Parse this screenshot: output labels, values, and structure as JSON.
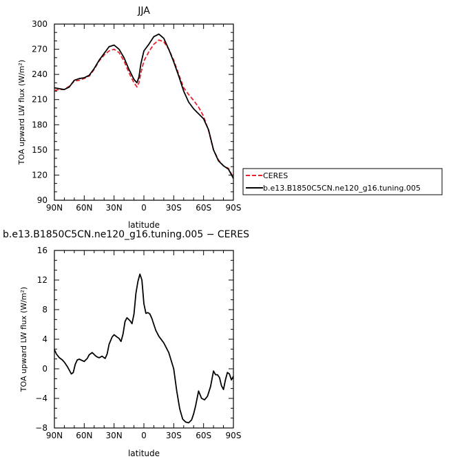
{
  "charts": {
    "top": {
      "title": "JJA",
      "xlabel": "latitude",
      "ylabel": "TOA upward LW flux (W/m²)"
    },
    "bottom": {
      "title": "b.e13.B1850C5CN.ne120_g16.tuning.005 − CERES",
      "xlabel": "latitude",
      "ylabel": "TOA upward LW flux (W/m²)"
    }
  },
  "legend": {
    "items": [
      {
        "label": "CERES",
        "color": "#e8202a",
        "dash": true
      },
      {
        "label": "b.e13.B1850C5CN.ne120_g16.tuning.005",
        "color": "#000000",
        "dash": false
      }
    ]
  },
  "chart_data": [
    {
      "type": "line",
      "title": "JJA",
      "xlabel": "latitude",
      "ylabel": "TOA upward LW flux (W/m²)",
      "xlim": [
        90,
        -90
      ],
      "ylim": [
        90,
        300
      ],
      "x_ticks": [
        90,
        60,
        30,
        0,
        -30,
        -60,
        -90
      ],
      "x_tick_labels": [
        "90N",
        "60N",
        "30N",
        "0",
        "30S",
        "60S",
        "90S"
      ],
      "y_ticks": [
        90,
        120,
        150,
        180,
        210,
        240,
        270,
        300
      ],
      "y_tick_labels": [
        "90",
        "120",
        "150",
        "180",
        "210",
        "240",
        "270",
        "300"
      ],
      "legend_position": "right",
      "series": [
        {
          "name": "CERES",
          "color": "#e8202a",
          "style": "dashed",
          "x": [
            90,
            85,
            80,
            75,
            70,
            65,
            60,
            55,
            50,
            45,
            40,
            35,
            30,
            25,
            20,
            15,
            10,
            7,
            5,
            3,
            0,
            -5,
            -10,
            -15,
            -20,
            -25,
            -30,
            -35,
            -40,
            -45,
            -50,
            -55,
            -60,
            -65,
            -70,
            -75,
            -80,
            -85,
            -90
          ],
          "values": [
            221,
            222,
            222,
            226,
            232,
            233,
            235,
            238,
            246,
            256,
            263,
            268,
            270,
            266,
            256,
            242,
            230,
            225,
            230,
            242,
            256,
            267,
            276,
            281,
            279,
            270,
            257,
            240,
            224,
            216,
            209,
            201,
            190,
            173,
            150,
            138,
            131,
            128,
            117
          ]
        },
        {
          "name": "b.e13.B1850C5CN.ne120_g16.tuning.005",
          "color": "#000000",
          "style": "solid",
          "x": [
            90,
            85,
            80,
            75,
            70,
            65,
            60,
            55,
            50,
            45,
            40,
            35,
            30,
            25,
            20,
            15,
            10,
            7,
            5,
            3,
            0,
            -5,
            -10,
            -15,
            -20,
            -25,
            -30,
            -35,
            -40,
            -45,
            -50,
            -55,
            -60,
            -65,
            -70,
            -75,
            -80,
            -85,
            -90
          ],
          "values": [
            224,
            223,
            222,
            225,
            233,
            235,
            236,
            239,
            247,
            257,
            265,
            273,
            275,
            270,
            260,
            246,
            234,
            230,
            237,
            253,
            268,
            276,
            285,
            288,
            283,
            270,
            255,
            238,
            220,
            207,
            199,
            193,
            187,
            174,
            150,
            137,
            131,
            127,
            116
          ]
        }
      ]
    },
    {
      "type": "line",
      "title": "b.e13.B1850C5CN.ne120_g16.tuning.005 − CERES",
      "xlabel": "latitude",
      "ylabel": "TOA upward LW flux (W/m²)",
      "xlim": [
        90,
        -90
      ],
      "ylim": [
        -8,
        16
      ],
      "x_ticks": [
        90,
        60,
        30,
        0,
        -30,
        -60,
        -90
      ],
      "x_tick_labels": [
        "90N",
        "60N",
        "30N",
        "0",
        "30S",
        "60S",
        "90S"
      ],
      "y_ticks": [
        -8,
        -4,
        0,
        4,
        8,
        12,
        16
      ],
      "y_tick_labels": [
        "−8",
        "−4",
        "0",
        "4",
        "8",
        "12",
        "16"
      ],
      "series": [
        {
          "color": "#000000",
          "style": "solid",
          "x": [
            90,
            88,
            85,
            82,
            80,
            77,
            75,
            73,
            71,
            69,
            67,
            65,
            60,
            57,
            55,
            52,
            49,
            47,
            45,
            42,
            39,
            37,
            35,
            32,
            30,
            27,
            25,
            23,
            21,
            19,
            17,
            14,
            12,
            10,
            8,
            6,
            4,
            2,
            0,
            -2,
            -4,
            -6,
            -8,
            -10,
            -12,
            -15,
            -20,
            -25,
            -30,
            -33,
            -36,
            -39,
            -42,
            -45,
            -48,
            -50,
            -52,
            -55,
            -58,
            -61,
            -64,
            -67,
            -70,
            -72,
            -74,
            -76,
            -78,
            -80,
            -82,
            -84,
            -86,
            -88,
            -90
          ],
          "values": [
            2.6,
            2.0,
            1.5,
            1.2,
            0.9,
            0.3,
            -0.2,
            -0.7,
            -0.5,
            0.6,
            1.2,
            1.3,
            1.0,
            1.4,
            1.9,
            2.2,
            1.8,
            1.6,
            1.5,
            1.7,
            1.4,
            2.0,
            3.3,
            4.3,
            4.6,
            4.3,
            4.1,
            3.7,
            4.7,
            6.4,
            6.9,
            6.5,
            6.1,
            7.4,
            10.2,
            11.8,
            12.8,
            12.0,
            8.8,
            7.5,
            7.6,
            7.4,
            6.8,
            6.0,
            5.2,
            4.4,
            3.5,
            2.2,
            0.0,
            -3.0,
            -5.4,
            -6.8,
            -7.2,
            -7.3,
            -6.9,
            -6.1,
            -5.0,
            -3.0,
            -4.0,
            -4.2,
            -3.7,
            -2.4,
            -0.3,
            -0.8,
            -0.8,
            -1.2,
            -2.3,
            -2.8,
            -1.5,
            -0.5,
            -0.7,
            -1.5,
            -1.0
          ]
        }
      ]
    }
  ]
}
